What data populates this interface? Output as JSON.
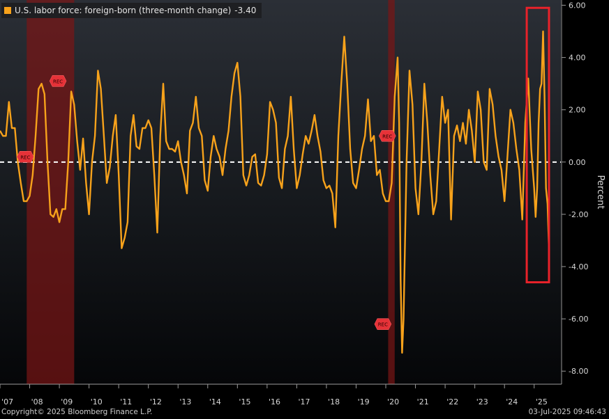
{
  "legend": {
    "label": "U.S. labor force: foreign-born (three-month change)",
    "last_value": "-3.40",
    "color": "#f7a21b"
  },
  "footer": {
    "copyright": "Copyright© 2025 Bloomberg Finance L.P.",
    "timestamp": "03-Jul-2025 09:46:43"
  },
  "recession_badge_text": "REC",
  "chart_data": {
    "type": "line",
    "ylabel": "Percent",
    "ylim": [
      -8.5,
      6.2
    ],
    "yticks": [
      "6.00",
      "4.00",
      "2.00",
      "0.00",
      "-2.00",
      "-4.00",
      "-6.00",
      "-8.00"
    ],
    "ytick_values": [
      6,
      4,
      2,
      0,
      -2,
      -4,
      -6,
      -8
    ],
    "xlim": [
      2007.0,
      2025.9
    ],
    "xticks": [
      "'07",
      "'08",
      "'09",
      "'10",
      "'11",
      "'12",
      "'13",
      "'14",
      "'15",
      "'16",
      "'17",
      "'18",
      "'19",
      "'20",
      "'21",
      "'22",
      "'23",
      "'24",
      "'25"
    ],
    "xtick_values": [
      2007.25,
      2008.25,
      2009.25,
      2010.25,
      2011.25,
      2012.25,
      2013.25,
      2014.25,
      2015.25,
      2016.25,
      2017.25,
      2018.25,
      2019.25,
      2020.25,
      2021.25,
      2022.25,
      2023.25,
      2024.25,
      2025.25
    ],
    "zero_line": true,
    "recessions": [
      {
        "start": 2007.9,
        "end": 2009.5
      },
      {
        "start": 2020.08,
        "end": 2020.3
      }
    ],
    "highlight_box": {
      "x0": 2024.75,
      "x1": 2025.5,
      "y0": -4.6,
      "y1": 5.9,
      "color": "#e8222a"
    },
    "series": [
      {
        "color": "#f7a21b",
        "points": [
          [
            2007.0,
            1.2
          ],
          [
            2007.1,
            1.0
          ],
          [
            2007.2,
            1.0
          ],
          [
            2007.3,
            2.3
          ],
          [
            2007.4,
            1.3
          ],
          [
            2007.5,
            1.3
          ],
          [
            2007.6,
            0.0
          ],
          [
            2007.7,
            -0.8
          ],
          [
            2007.8,
            -1.5
          ],
          [
            2007.9,
            -1.5
          ],
          [
            2008.0,
            -1.3
          ],
          [
            2008.1,
            -0.5
          ],
          [
            2008.2,
            1.0
          ],
          [
            2008.3,
            2.8
          ],
          [
            2008.4,
            3.0
          ],
          [
            2008.5,
            2.6
          ],
          [
            2008.6,
            0.0
          ],
          [
            2008.7,
            -2.0
          ],
          [
            2008.8,
            -2.1
          ],
          [
            2008.9,
            -1.8
          ],
          [
            2009.0,
            -2.3
          ],
          [
            2009.1,
            -1.8
          ],
          [
            2009.2,
            -1.8
          ],
          [
            2009.3,
            0.0
          ],
          [
            2009.4,
            2.7
          ],
          [
            2009.5,
            2.2
          ],
          [
            2009.6,
            0.8
          ],
          [
            2009.7,
            -0.3
          ],
          [
            2009.8,
            0.9
          ],
          [
            2009.9,
            -0.8
          ],
          [
            2010.0,
            -2.0
          ],
          [
            2010.1,
            0.0
          ],
          [
            2010.2,
            1.0
          ],
          [
            2010.3,
            3.5
          ],
          [
            2010.4,
            2.8
          ],
          [
            2010.5,
            1.0
          ],
          [
            2010.6,
            -0.8
          ],
          [
            2010.7,
            -0.2
          ],
          [
            2010.8,
            1.0
          ],
          [
            2010.9,
            1.8
          ],
          [
            2011.0,
            -0.5
          ],
          [
            2011.1,
            -3.3
          ],
          [
            2011.2,
            -2.9
          ],
          [
            2011.3,
            -2.3
          ],
          [
            2011.4,
            1.0
          ],
          [
            2011.5,
            1.8
          ],
          [
            2011.6,
            0.6
          ],
          [
            2011.7,
            0.5
          ],
          [
            2011.8,
            1.3
          ],
          [
            2011.9,
            1.3
          ],
          [
            2012.0,
            1.6
          ],
          [
            2012.1,
            1.3
          ],
          [
            2012.2,
            -0.5
          ],
          [
            2012.3,
            -2.7
          ],
          [
            2012.4,
            1.0
          ],
          [
            2012.5,
            3.0
          ],
          [
            2012.6,
            0.8
          ],
          [
            2012.7,
            0.5
          ],
          [
            2012.8,
            0.5
          ],
          [
            2012.9,
            0.4
          ],
          [
            2013.0,
            0.8
          ],
          [
            2013.1,
            0.0
          ],
          [
            2013.2,
            -0.5
          ],
          [
            2013.3,
            -1.2
          ],
          [
            2013.4,
            1.2
          ],
          [
            2013.5,
            1.5
          ],
          [
            2013.6,
            2.5
          ],
          [
            2013.7,
            1.3
          ],
          [
            2013.8,
            1.0
          ],
          [
            2013.9,
            -0.7
          ],
          [
            2014.0,
            -1.1
          ],
          [
            2014.1,
            0.2
          ],
          [
            2014.2,
            1.0
          ],
          [
            2014.3,
            0.5
          ],
          [
            2014.4,
            0.2
          ],
          [
            2014.5,
            -0.5
          ],
          [
            2014.6,
            0.5
          ],
          [
            2014.7,
            1.2
          ],
          [
            2014.8,
            2.5
          ],
          [
            2014.9,
            3.4
          ],
          [
            2015.0,
            3.8
          ],
          [
            2015.1,
            2.5
          ],
          [
            2015.2,
            -0.5
          ],
          [
            2015.3,
            -0.9
          ],
          [
            2015.4,
            -0.5
          ],
          [
            2015.5,
            0.2
          ],
          [
            2015.6,
            0.3
          ],
          [
            2015.7,
            -0.8
          ],
          [
            2015.8,
            -0.9
          ],
          [
            2015.9,
            -0.5
          ],
          [
            2016.0,
            0.3
          ],
          [
            2016.1,
            2.3
          ],
          [
            2016.2,
            2.0
          ],
          [
            2016.3,
            1.5
          ],
          [
            2016.4,
            -0.6
          ],
          [
            2016.5,
            -1.0
          ],
          [
            2016.6,
            0.5
          ],
          [
            2016.7,
            1.0
          ],
          [
            2016.8,
            2.5
          ],
          [
            2016.9,
            0.5
          ],
          [
            2017.0,
            -1.0
          ],
          [
            2017.1,
            -0.5
          ],
          [
            2017.2,
            0.3
          ],
          [
            2017.3,
            1.0
          ],
          [
            2017.4,
            0.7
          ],
          [
            2017.5,
            1.2
          ],
          [
            2017.6,
            1.8
          ],
          [
            2017.7,
            1.0
          ],
          [
            2017.8,
            0.4
          ],
          [
            2017.9,
            -0.7
          ],
          [
            2018.0,
            -1.0
          ],
          [
            2018.1,
            -0.9
          ],
          [
            2018.2,
            -1.2
          ],
          [
            2018.3,
            -2.5
          ],
          [
            2018.4,
            1.0
          ],
          [
            2018.5,
            3.0
          ],
          [
            2018.6,
            4.8
          ],
          [
            2018.7,
            3.0
          ],
          [
            2018.8,
            0.5
          ],
          [
            2018.9,
            -0.8
          ],
          [
            2019.0,
            -1.0
          ],
          [
            2019.1,
            -0.3
          ],
          [
            2019.2,
            0.5
          ],
          [
            2019.3,
            1.0
          ],
          [
            2019.4,
            2.4
          ],
          [
            2019.5,
            0.8
          ],
          [
            2019.6,
            1.0
          ],
          [
            2019.7,
            -0.5
          ],
          [
            2019.8,
            -0.3
          ],
          [
            2019.9,
            -1.2
          ],
          [
            2020.0,
            -1.5
          ],
          [
            2020.1,
            -1.5
          ],
          [
            2020.2,
            -0.8
          ],
          [
            2020.3,
            2.5
          ],
          [
            2020.4,
            4.0
          ],
          [
            2020.45,
            1.5
          ],
          [
            2020.5,
            -4.5
          ],
          [
            2020.55,
            -7.3
          ],
          [
            2020.6,
            -6.0
          ],
          [
            2020.7,
            0.0
          ],
          [
            2020.8,
            3.5
          ],
          [
            2020.9,
            2.2
          ],
          [
            2021.0,
            -1.0
          ],
          [
            2021.1,
            -2.0
          ],
          [
            2021.2,
            0.0
          ],
          [
            2021.3,
            3.0
          ],
          [
            2021.4,
            1.5
          ],
          [
            2021.5,
            -0.5
          ],
          [
            2021.6,
            -2.0
          ],
          [
            2021.7,
            -1.5
          ],
          [
            2021.8,
            0.5
          ],
          [
            2021.9,
            2.5
          ],
          [
            2022.0,
            1.5
          ],
          [
            2022.1,
            2.0
          ],
          [
            2022.2,
            -2.2
          ],
          [
            2022.3,
            1.0
          ],
          [
            2022.4,
            1.4
          ],
          [
            2022.5,
            0.8
          ],
          [
            2022.6,
            1.5
          ],
          [
            2022.7,
            0.7
          ],
          [
            2022.8,
            2.0
          ],
          [
            2022.9,
            1.2
          ],
          [
            2023.0,
            0.0
          ],
          [
            2023.1,
            2.7
          ],
          [
            2023.2,
            2.0
          ],
          [
            2023.3,
            0.0
          ],
          [
            2023.4,
            -0.3
          ],
          [
            2023.5,
            2.8
          ],
          [
            2023.6,
            2.2
          ],
          [
            2023.7,
            1.0
          ],
          [
            2023.8,
            0.2
          ],
          [
            2023.9,
            -0.3
          ],
          [
            2024.0,
            -1.5
          ],
          [
            2024.1,
            0.2
          ],
          [
            2024.2,
            2.0
          ],
          [
            2024.3,
            1.5
          ],
          [
            2024.4,
            0.5
          ],
          [
            2024.5,
            -0.3
          ],
          [
            2024.6,
            -2.2
          ],
          [
            2024.7,
            1.5
          ],
          [
            2024.8,
            3.2
          ],
          [
            2024.9,
            0.5
          ],
          [
            2025.0,
            -1.0
          ],
          [
            2025.05,
            -2.1
          ],
          [
            2025.1,
            -1.0
          ],
          [
            2025.15,
            1.5
          ],
          [
            2025.2,
            2.8
          ],
          [
            2025.25,
            3.0
          ],
          [
            2025.3,
            5.0
          ],
          [
            2025.35,
            2.5
          ],
          [
            2025.4,
            -1.0
          ],
          [
            2025.45,
            -1.6
          ],
          [
            2025.5,
            -3.4
          ]
        ]
      }
    ],
    "rec_badges": [
      [
        2007.9,
        0.2
      ],
      [
        2009.0,
        3.1
      ],
      [
        2020.1,
        1.0
      ],
      [
        2019.95,
        -6.2
      ]
    ]
  }
}
